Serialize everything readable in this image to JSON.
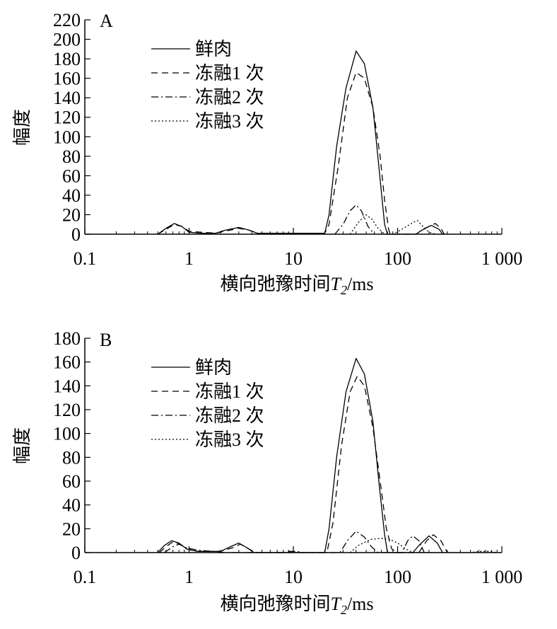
{
  "chart_data": [
    {
      "type": "line",
      "panel_label": "A",
      "xlabel_main": "横向弛豫时间",
      "xlabel_symbol": "T",
      "xlabel_subscript": "2",
      "xlabel_unit": "/ms",
      "ylabel": "幅度",
      "x_scale": "log",
      "xlim": [
        0.1,
        1000
      ],
      "ylim": [
        0,
        220
      ],
      "x_ticks": [
        0.1,
        1,
        10,
        100,
        1000
      ],
      "x_tick_labels": [
        "0.1",
        "1",
        "10",
        "100",
        "1 000"
      ],
      "y_ticks": [
        0,
        20,
        40,
        60,
        80,
        100,
        120,
        140,
        160,
        180,
        200,
        220
      ],
      "y_tick_labels": [
        "0",
        "20",
        "40",
        "60",
        "80",
        "100",
        "120",
        "140",
        "160",
        "180",
        "200",
        "220"
      ],
      "grid": false,
      "legend_position": "top-left",
      "series": [
        {
          "name": "鲜肉",
          "dash": "solid",
          "points": [
            [
              0.5,
              0
            ],
            [
              0.6,
              6
            ],
            [
              0.72,
              11
            ],
            [
              0.85,
              8
            ],
            [
              1.0,
              2
            ],
            [
              1.3,
              1
            ],
            [
              1.8,
              1
            ],
            [
              2.2,
              4
            ],
            [
              3.0,
              7
            ],
            [
              3.8,
              4
            ],
            [
              4.5,
              1
            ],
            [
              10,
              1
            ],
            [
              20,
              1
            ],
            [
              22,
              20
            ],
            [
              26,
              90
            ],
            [
              32,
              150
            ],
            [
              40,
              188
            ],
            [
              48,
              175
            ],
            [
              58,
              130
            ],
            [
              66,
              70
            ],
            [
              75,
              10
            ],
            [
              80,
              0
            ],
            [
              150,
              0
            ],
            [
              170,
              4
            ],
            [
              210,
              9
            ],
            [
              250,
              5
            ],
            [
              270,
              0
            ]
          ]
        },
        {
          "name": "冻融1 次",
          "dash": "dashed",
          "points": [
            [
              0.5,
              0
            ],
            [
              0.6,
              5
            ],
            [
              0.72,
              10
            ],
            [
              0.85,
              8
            ],
            [
              1.0,
              3
            ],
            [
              1.3,
              2
            ],
            [
              1.8,
              1
            ],
            [
              2.2,
              3
            ],
            [
              3.0,
              6
            ],
            [
              3.8,
              4
            ],
            [
              4.5,
              1
            ],
            [
              10,
              1
            ],
            [
              20,
              1
            ],
            [
              22,
              10
            ],
            [
              27,
              70
            ],
            [
              33,
              140
            ],
            [
              40,
              166
            ],
            [
              48,
              160
            ],
            [
              58,
              130
            ],
            [
              68,
              80
            ],
            [
              75,
              35
            ],
            [
              82,
              5
            ],
            [
              85,
              0
            ],
            [
              150,
              0
            ],
            [
              175,
              5
            ],
            [
              230,
              11
            ],
            [
              260,
              6
            ],
            [
              280,
              0
            ]
          ]
        },
        {
          "name": "冻融2 次",
          "dash": "dashdot",
          "points": [
            [
              25,
              0
            ],
            [
              30,
              10
            ],
            [
              35,
              24
            ],
            [
              40,
              30
            ],
            [
              45,
              24
            ],
            [
              52,
              8
            ],
            [
              60,
              0
            ]
          ]
        },
        {
          "name": "冻融3 次",
          "dash": "dotted",
          "points": [
            [
              35,
              0
            ],
            [
              42,
              12
            ],
            [
              50,
              20
            ],
            [
              57,
              15
            ],
            [
              65,
              6
            ],
            [
              75,
              0
            ],
            [
              90,
              0
            ],
            [
              110,
              5
            ],
            [
              140,
              12
            ],
            [
              155,
              14
            ],
            [
              175,
              8
            ],
            [
              200,
              2
            ],
            [
              230,
              0
            ]
          ]
        }
      ]
    },
    {
      "type": "line",
      "panel_label": "B",
      "xlabel_main": "横向弛豫时间",
      "xlabel_symbol": "T",
      "xlabel_subscript": "2",
      "xlabel_unit": "/ms",
      "ylabel": "幅度",
      "x_scale": "log",
      "xlim": [
        0.1,
        1000
      ],
      "ylim": [
        0,
        180
      ],
      "x_ticks": [
        0.1,
        1,
        10,
        100,
        1000
      ],
      "x_tick_labels": [
        "0.1",
        "1",
        "10",
        "100",
        "1 000"
      ],
      "y_ticks": [
        0,
        20,
        40,
        60,
        80,
        100,
        120,
        140,
        160,
        180
      ],
      "y_tick_labels": [
        "0",
        "20",
        "40",
        "60",
        "80",
        "100",
        "120",
        "140",
        "160",
        "180"
      ],
      "grid": false,
      "legend_position": "top-left",
      "series": [
        {
          "name": "鲜肉",
          "dash": "solid",
          "points": [
            [
              0.5,
              0
            ],
            [
              0.58,
              6
            ],
            [
              0.68,
              10
            ],
            [
              0.8,
              8
            ],
            [
              0.95,
              3
            ],
            [
              1.2,
              1
            ],
            [
              2.0,
              1
            ],
            [
              2.5,
              5
            ],
            [
              3.0,
              8
            ],
            [
              3.6,
              4
            ],
            [
              4.2,
              0
            ],
            [
              20,
              0
            ],
            [
              22,
              20
            ],
            [
              26,
              80
            ],
            [
              32,
              135
            ],
            [
              40,
              163
            ],
            [
              48,
              150
            ],
            [
              58,
              110
            ],
            [
              66,
              60
            ],
            [
              75,
              15
            ],
            [
              80,
              0
            ],
            [
              140,
              0
            ],
            [
              160,
              6
            ],
            [
              200,
              14
            ],
            [
              240,
              8
            ],
            [
              270,
              0
            ]
          ]
        },
        {
          "name": "冻融1 次",
          "dash": "dashed",
          "points": [
            [
              0.52,
              0
            ],
            [
              0.6,
              5
            ],
            [
              0.7,
              9
            ],
            [
              0.82,
              7
            ],
            [
              0.95,
              3
            ],
            [
              1.2,
              1
            ],
            [
              2.0,
              1
            ],
            [
              2.6,
              4
            ],
            [
              3.1,
              7
            ],
            [
              3.6,
              4
            ],
            [
              4.3,
              0
            ],
            [
              21,
              0
            ],
            [
              24,
              25
            ],
            [
              29,
              90
            ],
            [
              35,
              135
            ],
            [
              41,
              148
            ],
            [
              48,
              140
            ],
            [
              58,
              105
            ],
            [
              68,
              60
            ],
            [
              78,
              20
            ],
            [
              88,
              3
            ],
            [
              100,
              0
            ],
            [
              160,
              0
            ],
            [
              190,
              10
            ],
            [
              220,
              15
            ],
            [
              260,
              10
            ],
            [
              300,
              0
            ]
          ]
        },
        {
          "name": "冻融2 次",
          "dash": "dashdot",
          "points": [
            [
              0.58,
              0
            ],
            [
              0.7,
              5
            ],
            [
              0.8,
              7
            ],
            [
              0.95,
              4
            ],
            [
              1.2,
              2
            ],
            [
              1.7,
              1
            ],
            [
              2.2,
              0
            ],
            [
              8,
              0
            ],
            [
              9,
              1
            ],
            [
              11,
              1
            ],
            [
              12,
              0
            ],
            [
              28,
              0
            ],
            [
              33,
              10
            ],
            [
              40,
              18
            ],
            [
              48,
              13
            ],
            [
              56,
              5
            ],
            [
              65,
              0
            ],
            [
              110,
              0
            ],
            [
              125,
              10
            ],
            [
              140,
              14
            ],
            [
              160,
              10
            ],
            [
              180,
              0
            ]
          ]
        },
        {
          "name": "冻融3 次",
          "dash": "dotted",
          "points": [
            [
              35,
              0
            ],
            [
              42,
              6
            ],
            [
              55,
              11
            ],
            [
              70,
              12
            ],
            [
              85,
              11
            ],
            [
              100,
              8
            ],
            [
              120,
              3
            ],
            [
              140,
              0
            ],
            [
              500,
              0
            ],
            [
              600,
              1
            ],
            [
              750,
              1
            ],
            [
              900,
              0
            ]
          ]
        }
      ]
    }
  ]
}
